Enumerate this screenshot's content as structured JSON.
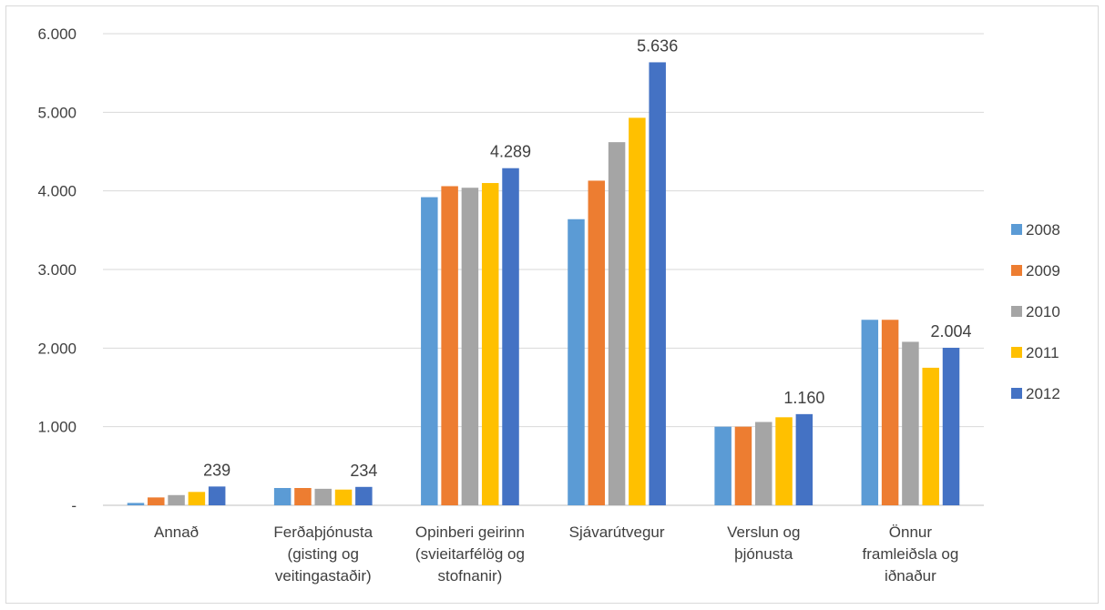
{
  "chart_data": {
    "type": "bar",
    "categories": [
      [
        "Annað"
      ],
      [
        "Ferðaþjónusta",
        "(gisting og",
        "veitingastaðir)"
      ],
      [
        "Opinberi geirinn",
        "(svieitarfélög og",
        "stofnanir)"
      ],
      [
        "Sjávarútvegur"
      ],
      [
        "Verslun og",
        "þjónusta"
      ],
      [
        "Önnur",
        "framleiðsla og",
        "iðnaður"
      ]
    ],
    "series": [
      {
        "name": "2008",
        "color": "#5b9bd5",
        "values": [
          30,
          220,
          3920,
          3640,
          1000,
          2360
        ]
      },
      {
        "name": "2009",
        "color": "#ed7d31",
        "values": [
          100,
          220,
          4060,
          4130,
          1000,
          2360
        ]
      },
      {
        "name": "2010",
        "color": "#a5a5a5",
        "values": [
          130,
          210,
          4040,
          4620,
          1060,
          2080
        ]
      },
      {
        "name": "2011",
        "color": "#ffc000",
        "values": [
          170,
          200,
          4100,
          4930,
          1120,
          1750
        ]
      },
      {
        "name": "2012",
        "color": "#4472c4",
        "values": [
          239,
          234,
          4289,
          5636,
          1160,
          2004
        ]
      }
    ],
    "data_labels": [
      "239",
      "234",
      "4.289",
      "5.636",
      "1.160",
      "2.004"
    ],
    "yticks": [
      "-",
      "1.000",
      "2.000",
      "3.000",
      "4.000",
      "5.000",
      "6.000"
    ],
    "ylim": [
      0,
      6000
    ],
    "grid": true,
    "legend_position": "right"
  }
}
